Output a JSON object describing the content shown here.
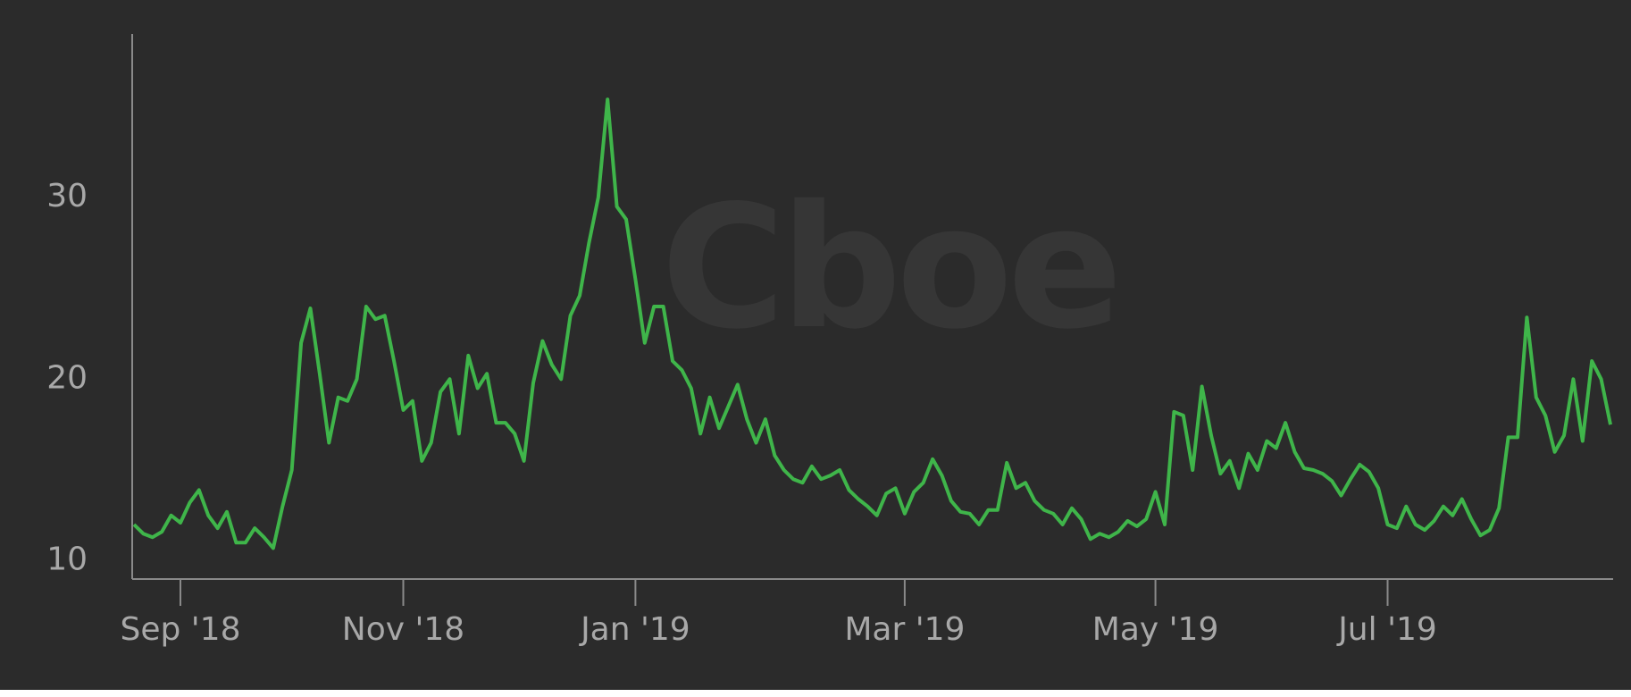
{
  "watermark": "Cboe",
  "chart_data": {
    "type": "line",
    "categories": [
      null,
      null,
      null,
      null,
      null,
      "Sep '18",
      null,
      null,
      null,
      null,
      null,
      null,
      null,
      null,
      null,
      null,
      null,
      null,
      null,
      null,
      null,
      null,
      null,
      null,
      null,
      null,
      null,
      null,
      null,
      "Nov '18",
      null,
      null,
      null,
      null,
      null,
      null,
      null,
      null,
      null,
      null,
      null,
      null,
      null,
      null,
      null,
      null,
      null,
      null,
      null,
      null,
      null,
      null,
      null,
      null,
      "Jan '19",
      null,
      null,
      null,
      null,
      null,
      null,
      null,
      null,
      null,
      null,
      null,
      null,
      null,
      null,
      null,
      null,
      null,
      null,
      null,
      null,
      null,
      null,
      null,
      null,
      null,
      null,
      null,
      null,
      "Mar '19",
      null,
      null,
      null,
      null,
      null,
      null,
      null,
      null,
      null,
      null,
      null,
      null,
      null,
      null,
      null,
      null,
      null,
      null,
      null,
      null,
      null,
      null,
      null,
      null,
      null,
      null,
      "May '19",
      null,
      null,
      null,
      null,
      null,
      null,
      null,
      null,
      null,
      null,
      null,
      null,
      null,
      null,
      null,
      null,
      null,
      null,
      null,
      null,
      null,
      null,
      null,
      null,
      "Jul '19",
      null,
      null,
      null,
      null,
      null,
      null,
      null,
      null,
      null,
      null,
      null,
      null,
      null,
      null,
      null,
      null,
      null,
      null,
      null,
      null,
      null,
      null,
      null,
      null
    ],
    "values": [
      12.0,
      11.5,
      11.3,
      11.6,
      12.5,
      12.1,
      13.2,
      13.9,
      12.5,
      11.8,
      12.7,
      11.0,
      11.0,
      11.8,
      11.3,
      10.7,
      13.0,
      15.0,
      22.0,
      23.9,
      20.3,
      16.5,
      19.0,
      18.8,
      20.0,
      24.0,
      23.3,
      23.5,
      21.0,
      18.3,
      18.8,
      15.5,
      16.5,
      19.3,
      20.0,
      17.0,
      21.3,
      19.5,
      20.3,
      17.6,
      17.6,
      17.0,
      15.5,
      19.8,
      22.1,
      20.8,
      20.0,
      23.5,
      24.6,
      27.5,
      30.0,
      35.4,
      29.5,
      28.8,
      25.5,
      22.0,
      24.0,
      24.0,
      21.0,
      20.5,
      19.5,
      17.0,
      19.0,
      17.3,
      18.5,
      19.7,
      17.8,
      16.5,
      17.8,
      15.8,
      15.0,
      14.5,
      14.3,
      15.2,
      14.5,
      14.7,
      15.0,
      13.9,
      13.4,
      13.0,
      12.5,
      13.7,
      14.0,
      12.6,
      13.8,
      14.3,
      15.6,
      14.7,
      13.3,
      12.7,
      12.6,
      12.0,
      12.8,
      12.8,
      15.4,
      14.0,
      14.3,
      13.3,
      12.8,
      12.6,
      12.0,
      12.9,
      12.3,
      11.2,
      11.5,
      11.3,
      11.6,
      12.2,
      11.9,
      12.3,
      13.8,
      12.0,
      18.2,
      18.0,
      15.0,
      19.6,
      16.9,
      14.8,
      15.5,
      14.0,
      15.9,
      15.0,
      16.6,
      16.2,
      17.6,
      16.0,
      15.1,
      15.0,
      14.8,
      14.4,
      13.6,
      14.5,
      15.3,
      14.9,
      14.0,
      12.0,
      11.8,
      13.0,
      12.0,
      11.7,
      12.2,
      13.0,
      12.5,
      13.4,
      12.3,
      11.4,
      11.7,
      12.9,
      16.8,
      16.8,
      23.4,
      19.0,
      18.0,
      16.0,
      16.9,
      20.0,
      16.6,
      21.0,
      20.0,
      17.5
    ],
    "color": "#3fb54a",
    "ylim": [
      9,
      39
    ],
    "yticks": [
      10,
      20,
      30
    ],
    "grid": false
  }
}
